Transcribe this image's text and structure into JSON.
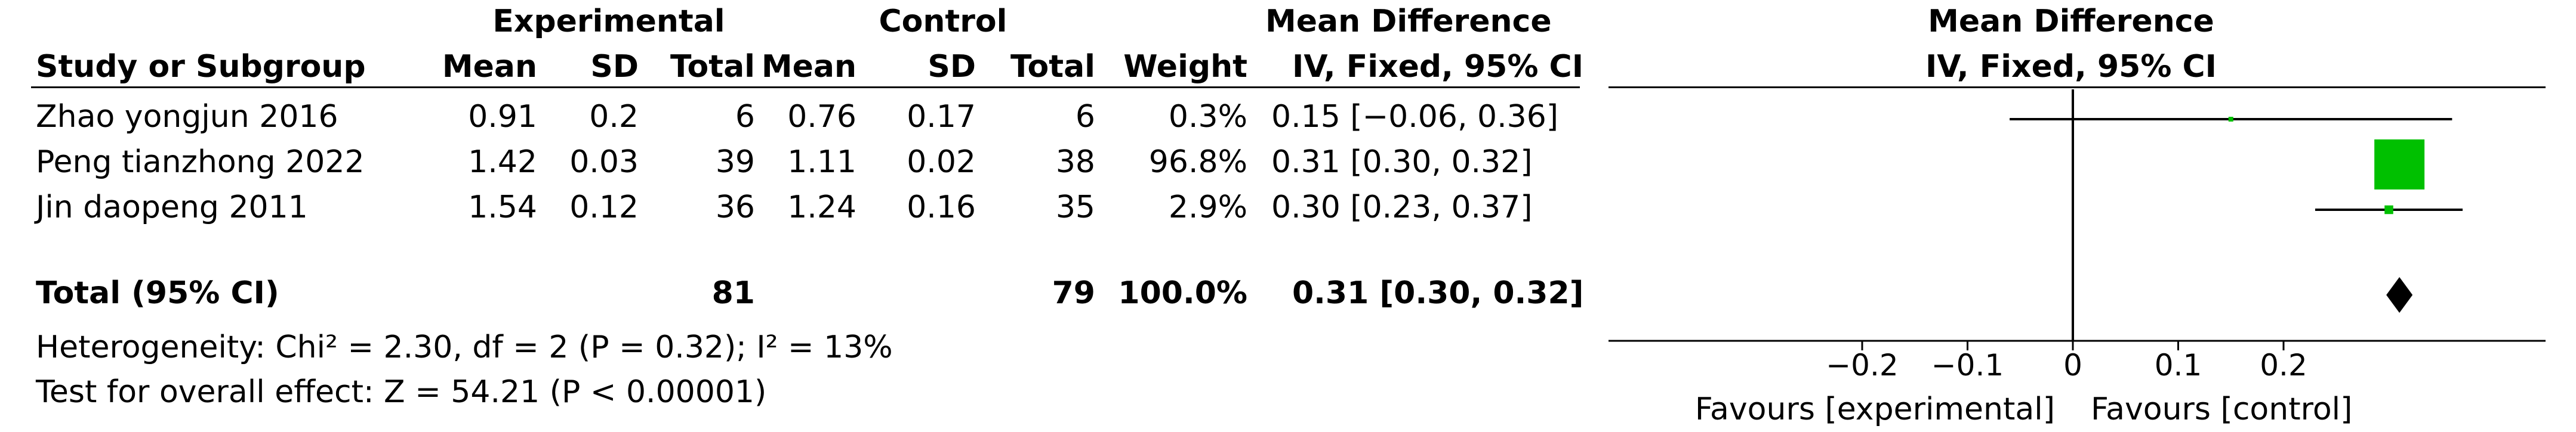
{
  "header": {
    "group_experimental": "Experimental",
    "group_control": "Control",
    "effect_title": "Mean Difference",
    "col_study": "Study or Subgroup",
    "col_mean": "Mean",
    "col_sd": "SD",
    "col_total": "Total",
    "col_weight": "Weight",
    "col_effect": "IV, Fixed, 95% CI",
    "plot_title": "Mean Difference",
    "plot_subtitle": "IV, Fixed, 95% CI"
  },
  "studies": [
    {
      "name": "Zhao yongjun 2016",
      "e_mean": "0.91",
      "e_sd": "0.2",
      "e_total": "6",
      "c_mean": "0.76",
      "c_sd": "0.17",
      "c_total": "6",
      "weight": "0.3%",
      "ci": "0.15 [−0.06, 0.36]"
    },
    {
      "name": "Peng tianzhong 2022",
      "e_mean": "1.42",
      "e_sd": "0.03",
      "e_total": "39",
      "c_mean": "1.11",
      "c_sd": "0.02",
      "c_total": "38",
      "weight": "96.8%",
      "ci": "0.31 [0.30, 0.32]"
    },
    {
      "name": "Jin daopeng 2011",
      "e_mean": "1.54",
      "e_sd": "0.12",
      "e_total": "36",
      "c_mean": "1.24",
      "c_sd": "0.16",
      "c_total": "35",
      "weight": "2.9%",
      "ci": "0.30 [0.23, 0.37]"
    }
  ],
  "total": {
    "name": "Total (95% CI)",
    "e_total": "81",
    "c_total": "79",
    "weight": "100.0%",
    "ci": "0.31 [0.30, 0.32]"
  },
  "footer": {
    "heterogeneity": "Heterogeneity: Chi² = 2.30, df = 2 (P = 0.32); I² = 13%",
    "overall": "Test for overall effect: Z = 54.21 (P < 0.00001)",
    "favours_left": "Favours [experimental]",
    "favours_right": "Favours [control]"
  },
  "colors": {
    "study_marker": "#00c000",
    "summary_marker": "#000000"
  },
  "chart_data": {
    "type": "forest",
    "xlim": [
      -0.45,
      0.45
    ],
    "ticks": [
      -0.2,
      -0.1,
      0,
      0.1,
      0.2
    ],
    "tick_labels": [
      "−0.2",
      "−0.1",
      "0",
      "0.1",
      "0.2"
    ],
    "studies": [
      {
        "name": "Zhao yongjun 2016",
        "md": 0.15,
        "lo": -0.06,
        "hi": 0.36,
        "weight": 0.3
      },
      {
        "name": "Peng tianzhong 2022",
        "md": 0.31,
        "lo": 0.3,
        "hi": 0.32,
        "weight": 96.8
      },
      {
        "name": "Jin daopeng 2011",
        "md": 0.3,
        "lo": 0.23,
        "hi": 0.37,
        "weight": 2.9
      }
    ],
    "total": {
      "md": 0.31,
      "lo": 0.3,
      "hi": 0.32
    }
  }
}
